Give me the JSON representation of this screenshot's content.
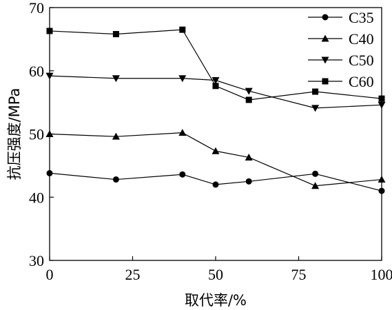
{
  "chart_data": {
    "type": "line",
    "title": "",
    "xlabel": "取代率/%",
    "ylabel": "抗压强度/MPa",
    "xlim": [
      0,
      100
    ],
    "ylim": [
      30,
      70
    ],
    "xticks": [
      0,
      25,
      50,
      75,
      100
    ],
    "yticks": [
      30,
      40,
      50,
      60,
      70
    ],
    "legend_position": "top-right",
    "x": [
      0,
      20,
      40,
      50,
      60,
      80,
      100
    ],
    "series": [
      {
        "name": "C35",
        "marker": "circle",
        "values": [
          43.8,
          42.8,
          43.6,
          42.0,
          42.5,
          43.7,
          41.0
        ]
      },
      {
        "name": "C40",
        "marker": "triangle-up",
        "values": [
          50.0,
          49.6,
          50.2,
          47.3,
          46.3,
          41.8,
          42.8
        ]
      },
      {
        "name": "C50",
        "marker": "triangle-down",
        "values": [
          59.2,
          58.8,
          58.8,
          58.5,
          56.8,
          54.1,
          54.6
        ]
      },
      {
        "name": "C60",
        "marker": "square",
        "values": [
          66.3,
          65.8,
          66.5,
          57.6,
          55.4,
          56.7,
          55.6
        ]
      }
    ]
  }
}
